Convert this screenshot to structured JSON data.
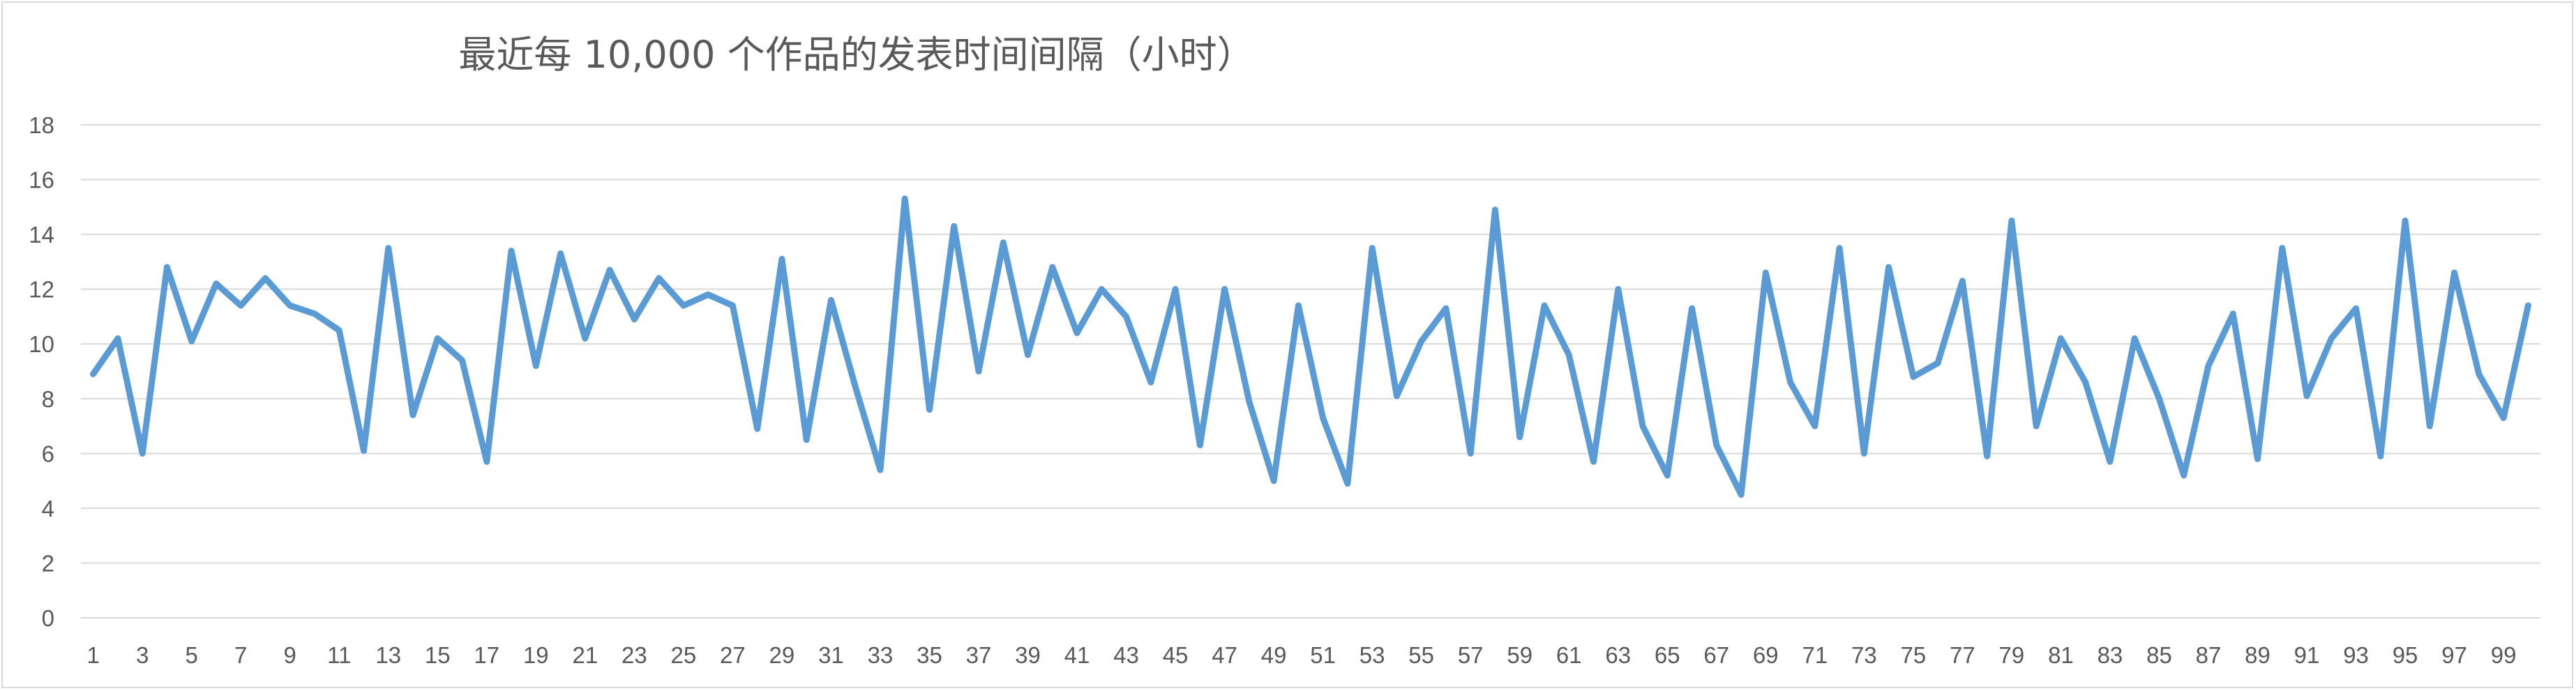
{
  "chart_data": {
    "type": "line",
    "title": "最近每 10,000 个作品的发表时间间隔（小时）",
    "xlabel": "",
    "ylabel": "",
    "ylim": [
      0,
      18
    ],
    "y_ticks": [
      0,
      2,
      4,
      6,
      8,
      10,
      12,
      14,
      16,
      18
    ],
    "x_tick_labels": [
      "1",
      "3",
      "5",
      "7",
      "9",
      "11",
      "13",
      "15",
      "17",
      "19",
      "21",
      "23",
      "25",
      "27",
      "29",
      "31",
      "33",
      "35",
      "37",
      "39",
      "41",
      "43",
      "45",
      "47",
      "49",
      "51",
      "53",
      "55",
      "57",
      "59",
      "61",
      "63",
      "65",
      "67",
      "69",
      "71",
      "73",
      "75",
      "77",
      "79",
      "81",
      "83",
      "85",
      "87",
      "89",
      "91",
      "93",
      "95",
      "97",
      "99"
    ],
    "x_tick_positions": [
      1,
      3,
      5,
      7,
      9,
      11,
      13,
      15,
      17,
      19,
      21,
      23,
      25,
      27,
      29,
      31,
      33,
      35,
      37,
      39,
      41,
      43,
      45,
      47,
      49,
      51,
      53,
      55,
      57,
      59,
      61,
      63,
      65,
      67,
      69,
      71,
      73,
      75,
      77,
      79,
      81,
      83,
      85,
      87,
      89,
      91,
      93,
      95,
      97,
      99
    ],
    "grid": true,
    "legend": "none",
    "series_color": "#5b9bd5",
    "x": [
      1,
      2,
      3,
      4,
      5,
      6,
      7,
      8,
      9,
      10,
      11,
      12,
      13,
      14,
      15,
      16,
      17,
      18,
      19,
      20,
      21,
      22,
      23,
      24,
      25,
      26,
      27,
      28,
      29,
      30,
      31,
      32,
      33,
      34,
      35,
      36,
      37,
      38,
      39,
      40,
      41,
      42,
      43,
      44,
      45,
      46,
      47,
      48,
      49,
      50,
      51,
      52,
      53,
      54,
      55,
      56,
      57,
      58,
      59,
      60,
      61,
      62,
      63,
      64,
      65,
      66,
      67,
      68,
      69,
      70,
      71,
      72,
      73,
      74,
      75,
      76,
      77,
      78,
      79,
      80,
      81,
      82,
      83,
      84,
      85,
      86,
      87,
      88,
      89,
      90,
      91,
      92,
      93,
      94,
      95,
      96,
      97,
      98,
      99,
      100
    ],
    "series": [
      {
        "values": [
          8.9,
          10.2,
          6.0,
          12.8,
          10.1,
          12.2,
          11.4,
          12.4,
          11.4,
          11.1,
          10.5,
          6.1,
          13.5,
          7.4,
          10.2,
          9.4,
          5.7,
          13.4,
          9.2,
          13.3,
          10.2,
          12.7,
          10.9,
          12.4,
          11.4,
          11.8,
          11.4,
          6.9,
          13.1,
          6.5,
          11.6,
          8.4,
          5.4,
          15.3,
          7.6,
          14.3,
          9.0,
          13.7,
          9.6,
          12.8,
          10.4,
          12.0,
          11.0,
          8.6,
          12.0,
          6.3,
          12.0,
          7.9,
          5.0,
          11.4,
          7.3,
          4.9,
          13.5,
          8.1,
          10.1,
          11.3,
          6.0,
          14.9,
          6.6,
          11.4,
          9.6,
          5.7,
          12.0,
          7.0,
          5.2,
          11.3,
          6.3,
          4.5,
          12.6,
          8.6,
          7.0,
          13.5,
          6.0,
          12.8,
          8.8,
          9.3,
          12.3,
          5.9,
          14.5,
          7.0,
          10.2,
          8.6,
          5.7,
          10.2,
          8.0,
          5.2,
          9.2,
          11.1,
          5.8,
          13.5,
          8.1,
          10.2,
          11.3,
          5.9,
          14.5,
          7.0,
          12.6,
          8.9,
          7.3,
          11.4
        ]
      }
    ]
  }
}
